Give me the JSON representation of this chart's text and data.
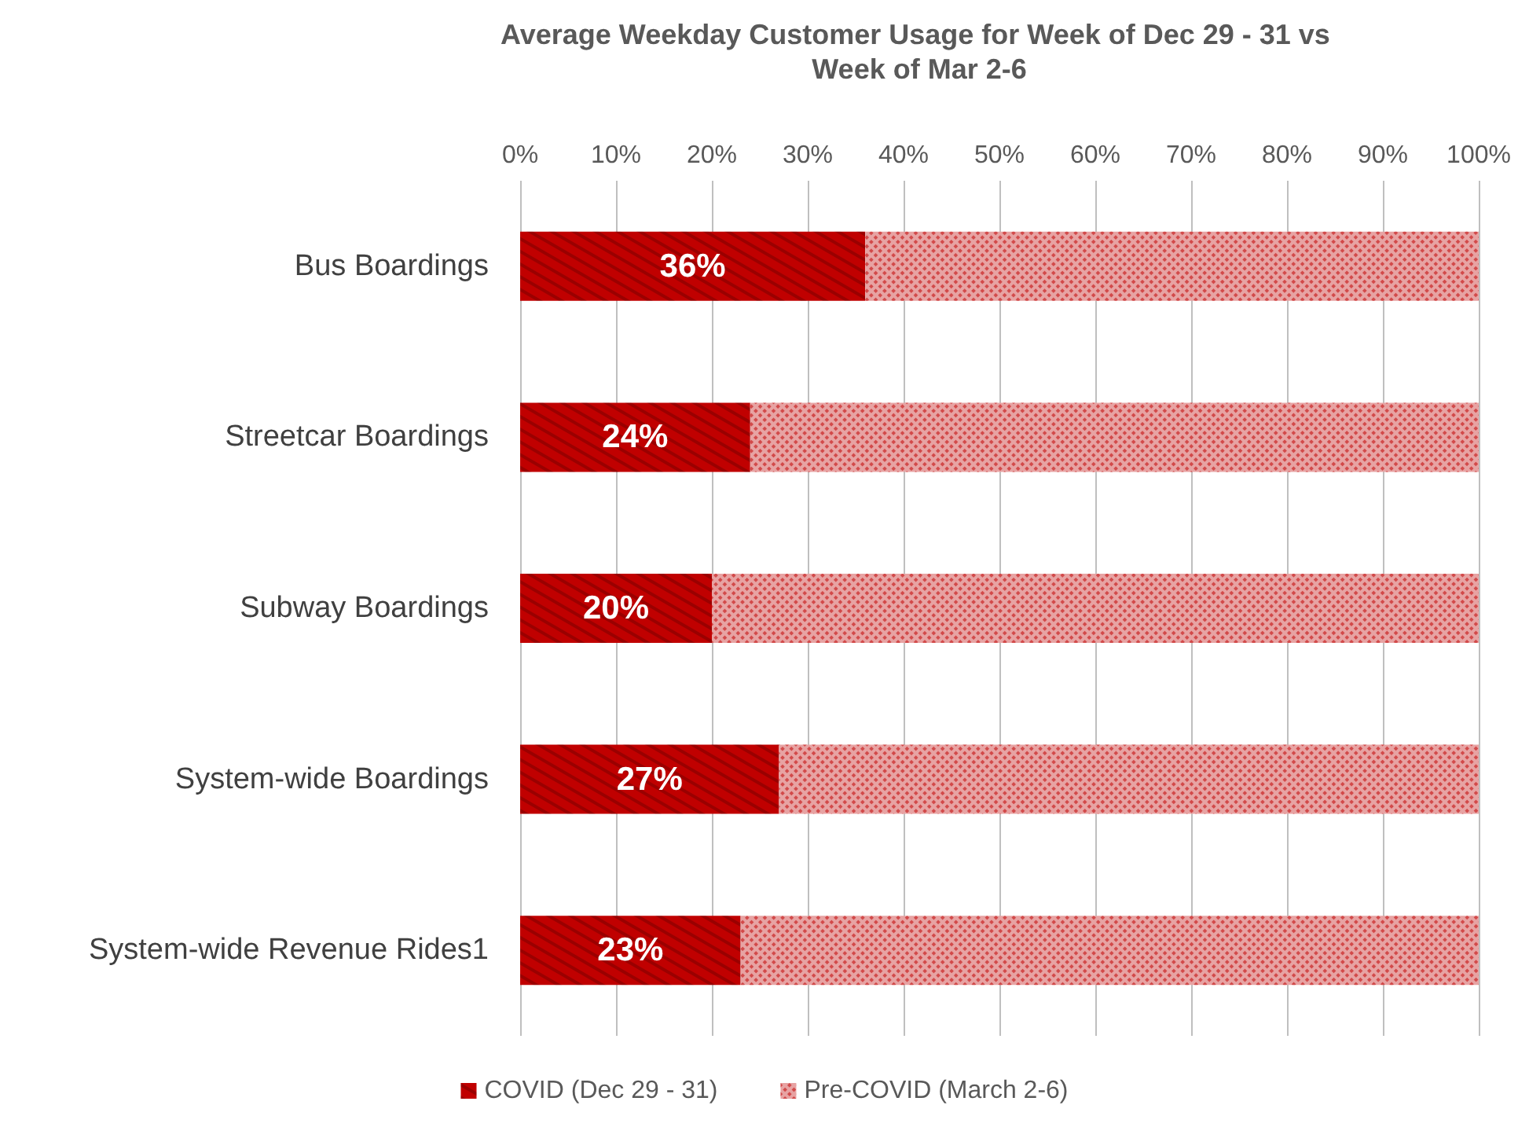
{
  "chart_data": {
    "type": "bar",
    "title": "Average Weekday Customer Usage for Week of Dec 29 - 31 vs Week of Mar 2-6",
    "orientation": "horizontal",
    "stacked": true,
    "categories": [
      "Bus Boardings",
      "Streetcar Boardings",
      "Subway Boardings",
      "System-wide Boardings",
      "System-wide Revenue Rides1"
    ],
    "series": [
      {
        "name": "COVID (Dec 29 - 31)",
        "color": "#c00000",
        "values": [
          36,
          24,
          20,
          27,
          23
        ],
        "value_labels": [
          "36%",
          "24%",
          "20%",
          "27%",
          "23%"
        ]
      },
      {
        "name": "Pre-COVID (March 2-6)",
        "color": "#e7a3a3",
        "values": [
          64,
          76,
          80,
          73,
          77
        ]
      }
    ],
    "xlim": [
      0,
      100
    ],
    "xticks": [
      {
        "value": 0,
        "label": "0%"
      },
      {
        "value": 10,
        "label": "10%"
      },
      {
        "value": 20,
        "label": "20%"
      },
      {
        "value": 30,
        "label": "30%"
      },
      {
        "value": 40,
        "label": "40%"
      },
      {
        "value": 50,
        "label": "50%"
      },
      {
        "value": 60,
        "label": "60%"
      },
      {
        "value": 70,
        "label": "70%"
      },
      {
        "value": 80,
        "label": "80%"
      },
      {
        "value": 90,
        "label": "90%"
      },
      {
        "value": 100,
        "label": "100%"
      }
    ],
    "grid": "x",
    "legend": "bottom"
  }
}
